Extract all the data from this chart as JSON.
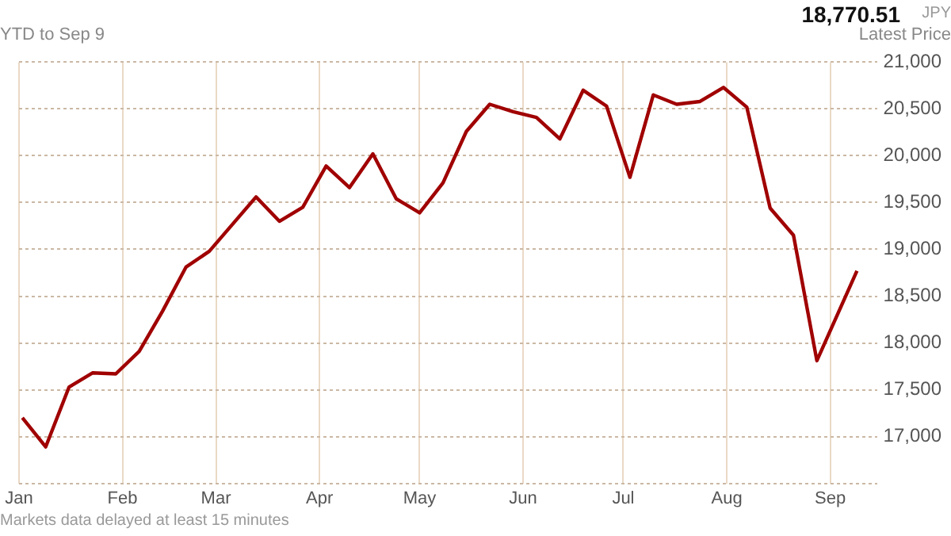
{
  "chart_data": {
    "type": "line",
    "subtitle": "YTD to Sep 9",
    "annotations": [
      "18,770.51",
      "JPY",
      "Latest Price",
      "Markets data delayed at least 15 minutes"
    ],
    "x": [
      "--01-02",
      "--01-09",
      "--01-16",
      "--01-23",
      "--01-30",
      "--02-06",
      "--02-13",
      "--02-20",
      "--02-27",
      "--03-06",
      "--03-13",
      "--03-20",
      "--03-27",
      "--04-03",
      "--04-10",
      "--04-17",
      "--04-24",
      "--05-01",
      "--05-08",
      "--05-15",
      "--05-22",
      "--05-29",
      "--06-05",
      "--06-12",
      "--06-19",
      "--06-26",
      "--07-03",
      "--07-10",
      "--07-17",
      "--07-24",
      "--07-31",
      "--08-07",
      "--08-14",
      "--08-21",
      "--08-28",
      "--09-09"
    ],
    "series": [
      {
        "color": "#a00000",
        "values": [
          17200,
          16890,
          17530,
          17680,
          17670,
          17910,
          18340,
          18810,
          18980,
          19270,
          19560,
          19300,
          19450,
          19890,
          19660,
          20020,
          19540,
          19390,
          19710,
          20260,
          20550,
          20470,
          20410,
          20180,
          20700,
          20530,
          19770,
          20650,
          20550,
          20580,
          20730,
          20520,
          19440,
          19150,
          17810,
          18770
        ]
      }
    ],
    "xlim": [
      "--01-01",
      "--09-15"
    ],
    "xticks": [
      {
        "value": "--01-01",
        "label": "Jan"
      },
      {
        "value": "--02-01",
        "label": "Feb"
      },
      {
        "value": "--03-01",
        "label": "Mar"
      },
      {
        "value": "--04-01",
        "label": "Apr"
      },
      {
        "value": "--05-01",
        "label": "May"
      },
      {
        "value": "--06-01",
        "label": "Jun"
      },
      {
        "value": "--07-01",
        "label": "Jul"
      },
      {
        "value": "--08-01",
        "label": "Aug"
      },
      {
        "value": "--09-01",
        "label": "Sep"
      }
    ],
    "ylim": [
      16500,
      21000
    ],
    "yticks": [
      {
        "value": 16500,
        "label": null
      },
      {
        "value": 17000,
        "label": "17,000"
      },
      {
        "value": 17500,
        "label": "17,500"
      },
      {
        "value": 18000,
        "label": "18,000"
      },
      {
        "value": 18500,
        "label": "18,500"
      },
      {
        "value": 19000,
        "label": "19,000"
      },
      {
        "value": 19500,
        "label": "19,500"
      },
      {
        "value": 20000,
        "label": "20,000"
      },
      {
        "value": 20500,
        "label": "20,500"
      },
      {
        "value": 21000,
        "label": "21,000"
      }
    ],
    "grid": true,
    "marker": "none",
    "line_style": "solid"
  }
}
